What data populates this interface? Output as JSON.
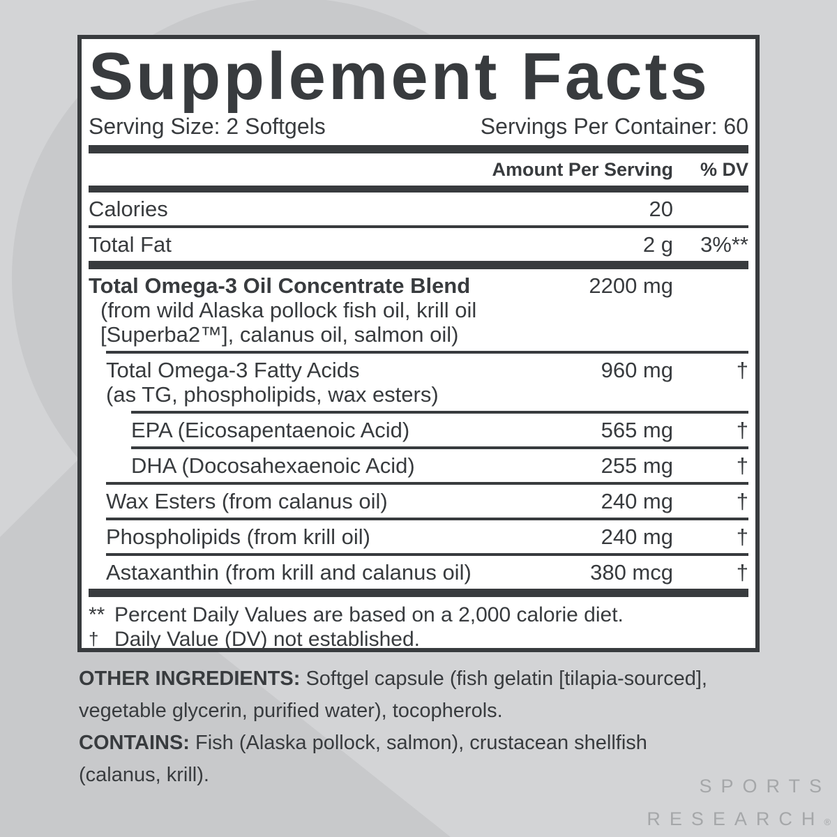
{
  "panel": {
    "title": "Supplement Facts",
    "serving_size": "Serving Size: 2 Softgels",
    "servings_per_container": "Servings Per Container: 60",
    "header": {
      "amount": "Amount Per Serving",
      "dv": "% DV"
    },
    "rows": [
      {
        "name": "Calories",
        "sub": [],
        "amount": "20",
        "dv": "",
        "indent": 0,
        "bold": false,
        "sub_extra_indent": false,
        "divider": "full"
      },
      {
        "name": "Total Fat",
        "sub": [],
        "amount": "2 g",
        "dv": "3%**",
        "indent": 0,
        "bold": false,
        "sub_extra_indent": false,
        "divider": "thick"
      },
      {
        "name": "Total Omega-3 Oil Concentrate Blend",
        "sub": [
          "(from wild Alaska pollock fish oil, krill oil",
          "[Superba2™], calanus oil, salmon oil)"
        ],
        "amount": "2200 mg",
        "dv": "",
        "indent": 0,
        "bold": true,
        "sub_extra_indent": true,
        "divider": "ind1"
      },
      {
        "name": "Total Omega-3 Fatty Acids",
        "sub": [
          "(as TG, phospholipids, wax esters)"
        ],
        "amount": "960 mg",
        "dv": "†",
        "indent": 1,
        "bold": false,
        "sub_extra_indent": false,
        "divider": "ind2"
      },
      {
        "name": "EPA (Eicosapentaenoic Acid)",
        "sub": [],
        "amount": "565 mg",
        "dv": "†",
        "indent": 2,
        "bold": false,
        "sub_extra_indent": false,
        "divider": "ind2"
      },
      {
        "name": "DHA (Docosahexaenoic Acid)",
        "sub": [],
        "amount": "255 mg",
        "dv": "†",
        "indent": 2,
        "bold": false,
        "sub_extra_indent": false,
        "divider": "ind1"
      },
      {
        "name": "Wax Esters (from calanus oil)",
        "sub": [],
        "amount": "240 mg",
        "dv": "†",
        "indent": 1,
        "bold": false,
        "sub_extra_indent": false,
        "divider": "ind1"
      },
      {
        "name": "Phospholipids (from krill oil)",
        "sub": [],
        "amount": "240 mg",
        "dv": "†",
        "indent": 1,
        "bold": false,
        "sub_extra_indent": false,
        "divider": "ind1"
      },
      {
        "name": "Astaxanthin (from krill and calanus oil)",
        "sub": [],
        "amount": "380 mcg",
        "dv": "†",
        "indent": 1,
        "bold": false,
        "sub_extra_indent": false,
        "divider": "none"
      }
    ],
    "footnotes": [
      {
        "symbol": "**",
        "text": "Percent Daily Values are based on a 2,000 calorie diet."
      },
      {
        "symbol": "†",
        "text": "Daily Value (DV) not established."
      }
    ]
  },
  "other_ingredients": {
    "label": "OTHER INGREDIENTS:",
    "text": " Softgel capsule (fish gelatin [tilapia-sourced], vegetable glycerin, purified water), tocopherols."
  },
  "contains": {
    "label": "CONTAINS:",
    "text": " Fish (Alaska pollock, salmon), crustacean shellfish (calanus, krill)."
  },
  "logo": {
    "line1": "SPORTS",
    "line2": "RESEARCH",
    "registered": "®"
  },
  "colors": {
    "ink": "#383b3e",
    "page_background": "#d3d4d6",
    "background_shape": "#c8c9cb",
    "panel_background": "#ffffff",
    "logo_gray": "#a5a7a9"
  }
}
